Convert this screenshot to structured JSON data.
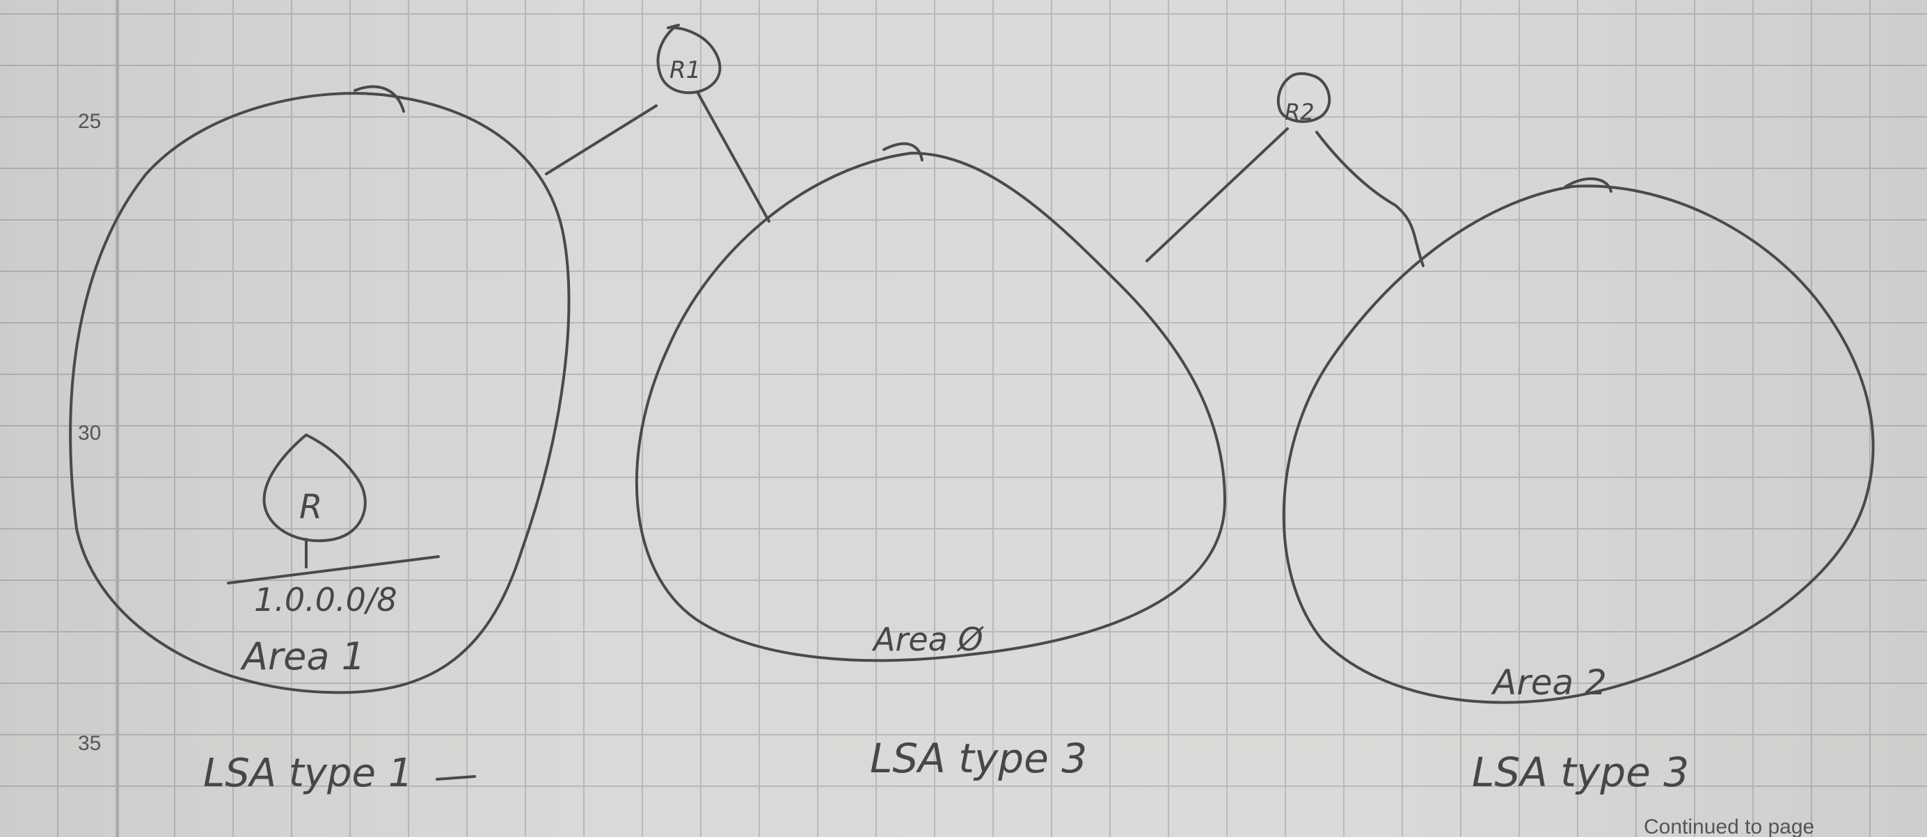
{
  "page": {
    "line_numbers": [
      "25",
      "30",
      "35"
    ],
    "footer_text": "Continued to page"
  },
  "diagram": {
    "routers": [
      {
        "id": "r-area1",
        "label": "R"
      },
      {
        "id": "r1",
        "label": "R1"
      },
      {
        "id": "r2",
        "label": "R2"
      }
    ],
    "areas": [
      {
        "id": "area-1",
        "label": "Area 1",
        "network": "1.0.0.0/8",
        "lsa": "LSA type 1"
      },
      {
        "id": "area-0",
        "label": "Area Ø",
        "lsa": "LSA type 3"
      },
      {
        "id": "area-2",
        "label": "Area 2",
        "lsa": "LSA type 3"
      }
    ]
  }
}
